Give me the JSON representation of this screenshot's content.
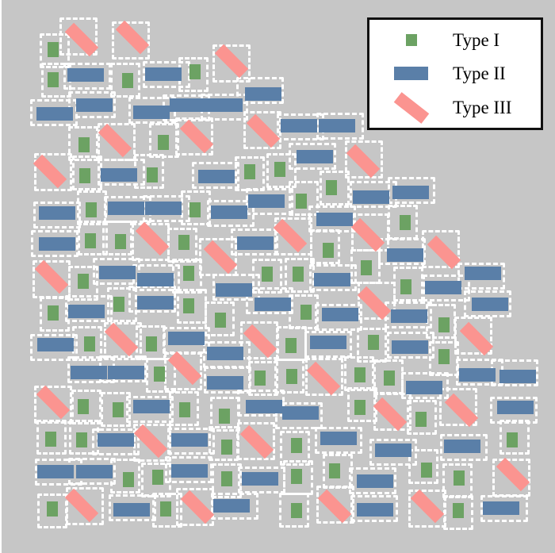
{
  "colors": {
    "background": "#c6c6c6",
    "type1": "#6ca263",
    "type2": "#5a7fa8",
    "type3": "#fb9490",
    "dash": "#ffffff",
    "legend_bg": "#ffffff",
    "legend_border": "#111111",
    "text": "#000000"
  },
  "legend": {
    "items": [
      {
        "type": "I",
        "label": "Type I"
      },
      {
        "type": "II",
        "label": "Type II"
      },
      {
        "type": "III",
        "label": "Type III"
      }
    ]
  },
  "shapes": {
    "type_styles": {
      "I": {
        "name": "type1-square",
        "w": 14,
        "h": 19,
        "cw": 38,
        "ch": 44,
        "rot": 0
      },
      "II": {
        "name": "type2-rect",
        "w": 46,
        "h": 17,
        "cw": 60,
        "ch": 34,
        "rot": 0
      },
      "III": {
        "name": "type3-rect",
        "w": 44,
        "h": 16,
        "cw": 48,
        "ch": 48,
        "rot": 45
      }
    },
    "items": [
      [
        "III",
        101,
        50
      ],
      [
        "III",
        165,
        47
      ],
      [
        "III",
        290,
        77
      ],
      [
        "III",
        143,
        177
      ],
      [
        "III",
        61,
        216
      ],
      [
        "III",
        246,
        172
      ],
      [
        "III",
        330,
        165
      ],
      [
        "III",
        456,
        203
      ],
      [
        "III",
        462,
        296
      ],
      [
        "III",
        558,
        318
      ],
      [
        "III",
        190,
        301
      ],
      [
        "III",
        63,
        349
      ],
      [
        "III",
        151,
        428
      ],
      [
        "III",
        364,
        297
      ],
      [
        "III",
        276,
        324
      ],
      [
        "III",
        326,
        430
      ],
      [
        "III",
        406,
        477
      ],
      [
        "III",
        470,
        382
      ],
      [
        "III",
        599,
        427
      ],
      [
        "III",
        231,
        464
      ],
      [
        "III",
        65,
        507
      ],
      [
        "III",
        188,
        556
      ],
      [
        "III",
        101,
        637
      ],
      [
        "III",
        247,
        639
      ],
      [
        "III",
        322,
        557
      ],
      [
        "III",
        420,
        638
      ],
      [
        "III",
        490,
        522
      ],
      [
        "III",
        580,
        517
      ],
      [
        "III",
        645,
        598
      ],
      [
        "III",
        537,
        638
      ],
      [
        "I",
        65,
        62
      ],
      [
        "I",
        65,
        100
      ],
      [
        "I",
        159,
        101
      ],
      [
        "I",
        104,
        182
      ],
      [
        "I",
        204,
        179
      ],
      [
        "I",
        105,
        221
      ],
      [
        "I",
        190,
        220
      ],
      [
        "I",
        244,
        90
      ],
      [
        "I",
        313,
        216
      ],
      [
        "I",
        351,
        213
      ],
      [
        "I",
        416,
        236
      ],
      [
        "I",
        509,
        280
      ],
      [
        "I",
        460,
        337
      ],
      [
        "I",
        113,
        264
      ],
      [
        "I",
        112,
        303
      ],
      [
        "I",
        150,
        304
      ],
      [
        "I",
        230,
        305
      ],
      [
        "I",
        103,
        354
      ],
      [
        "I",
        65,
        394
      ],
      [
        "I",
        148,
        383
      ],
      [
        "I",
        111,
        433
      ],
      [
        "I",
        189,
        433
      ],
      [
        "I",
        244,
        264
      ],
      [
        "I",
        378,
        253
      ],
      [
        "I",
        412,
        315
      ],
      [
        "I",
        236,
        344
      ],
      [
        "I",
        335,
        345
      ],
      [
        "I",
        374,
        345
      ],
      [
        "I",
        236,
        385
      ],
      [
        "I",
        384,
        393
      ],
      [
        "I",
        276,
        403
      ],
      [
        "I",
        365,
        435
      ],
      [
        "I",
        510,
        361
      ],
      [
        "I",
        558,
        409
      ],
      [
        "I",
        469,
        431
      ],
      [
        "I",
        558,
        449
      ],
      [
        "I",
        199,
        471
      ],
      [
        "I",
        103,
        512
      ],
      [
        "I",
        147,
        516
      ],
      [
        "I",
        231,
        516
      ],
      [
        "I",
        62,
        553
      ],
      [
        "I",
        101,
        554
      ],
      [
        "I",
        160,
        604
      ],
      [
        "I",
        197,
        601
      ],
      [
        "I",
        64,
        641
      ],
      [
        "I",
        207,
        641
      ],
      [
        "I",
        326,
        476
      ],
      [
        "I",
        366,
        474
      ],
      [
        "I",
        452,
        472
      ],
      [
        "I",
        281,
        524
      ],
      [
        "I",
        452,
        513
      ],
      [
        "I",
        284,
        563
      ],
      [
        "I",
        372,
        561
      ],
      [
        "I",
        284,
        603
      ],
      [
        "I",
        372,
        600
      ],
      [
        "I",
        420,
        593
      ],
      [
        "I",
        372,
        643
      ],
      [
        "I",
        489,
        476
      ],
      [
        "I",
        529,
        528
      ],
      [
        "I",
        644,
        554
      ],
      [
        "I",
        536,
        592
      ],
      [
        "I",
        577,
        602
      ],
      [
        "I",
        576,
        643
      ],
      [
        "II",
        106,
        94
      ],
      [
        "II",
        204,
        93
      ],
      [
        "II",
        117,
        132
      ],
      [
        "II",
        67,
        143
      ],
      [
        "II",
        189,
        141
      ],
      [
        "II",
        148,
        220
      ],
      [
        "II",
        330,
        118
      ],
      [
        "II",
        235,
        132
      ],
      [
        "II",
        281,
        132
      ],
      [
        "II",
        375,
        158
      ],
      [
        "II",
        423,
        158
      ],
      [
        "II",
        395,
        197
      ],
      [
        "II",
        271,
        222
      ],
      [
        "II",
        516,
        242
      ],
      [
        "II",
        466,
        248
      ],
      [
        "II",
        509,
        321
      ],
      [
        "II",
        607,
        344
      ],
      [
        "II",
        70,
        268
      ],
      [
        "II",
        157,
        262
      ],
      [
        "II",
        204,
        262
      ],
      [
        "II",
        70,
        307
      ],
      [
        "II",
        146,
        343
      ],
      [
        "II",
        194,
        352
      ],
      [
        "II",
        107,
        392
      ],
      [
        "II",
        194,
        381
      ],
      [
        "II",
        68,
        434
      ],
      [
        "II",
        233,
        426
      ],
      [
        "II",
        287,
        267
      ],
      [
        "II",
        334,
        253
      ],
      [
        "II",
        420,
        276
      ],
      [
        "II",
        320,
        306
      ],
      [
        "II",
        417,
        352
      ],
      [
        "II",
        293,
        365
      ],
      [
        "II",
        342,
        383
      ],
      [
        "II",
        427,
        396
      ],
      [
        "II",
        412,
        431
      ],
      [
        "II",
        282,
        445
      ],
      [
        "II",
        557,
        362
      ],
      [
        "II",
        616,
        383
      ],
      [
        "II",
        514,
        398
      ],
      [
        "II",
        515,
        437
      ],
      [
        "II",
        110,
        469
      ],
      [
        "II",
        157,
        469
      ],
      [
        "II",
        189,
        512
      ],
      [
        "II",
        144,
        554
      ],
      [
        "II",
        237,
        554
      ],
      [
        "II",
        68,
        594
      ],
      [
        "II",
        117,
        594
      ],
      [
        "II",
        237,
        593
      ],
      [
        "II",
        164,
        642
      ],
      [
        "II",
        282,
        482
      ],
      [
        "II",
        331,
        512
      ],
      [
        "II",
        377,
        520
      ],
      [
        "II",
        425,
        552
      ],
      [
        "II",
        326,
        603
      ],
      [
        "II",
        290,
        637
      ],
      [
        "II",
        471,
        606
      ],
      [
        "II",
        471,
        642
      ],
      [
        "II",
        533,
        488
      ],
      [
        "II",
        600,
        472
      ],
      [
        "II",
        651,
        474
      ],
      [
        "II",
        648,
        513
      ],
      [
        "II",
        494,
        567
      ],
      [
        "II",
        581,
        562
      ],
      [
        "II",
        630,
        640
      ]
    ]
  }
}
